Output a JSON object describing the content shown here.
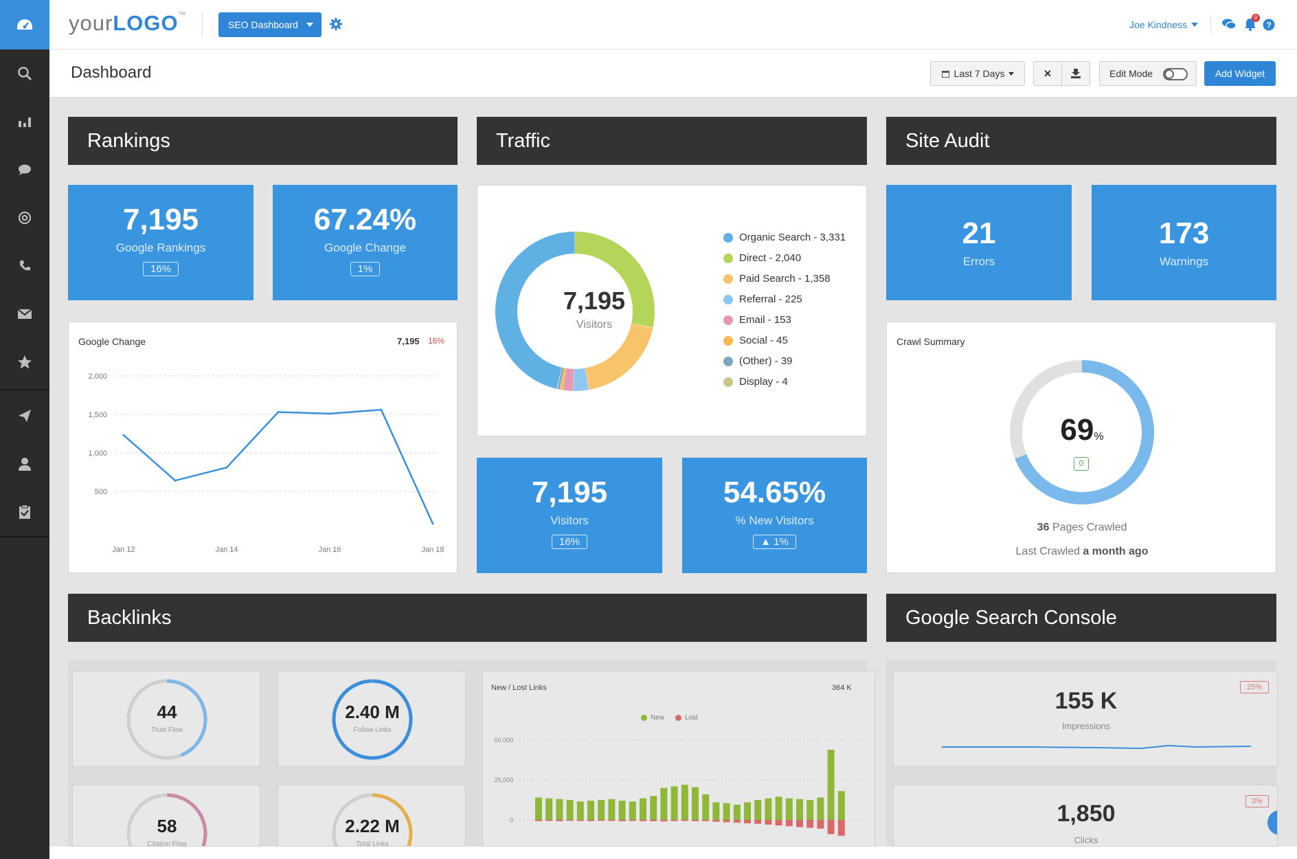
{
  "header": {
    "logo_prefix": "your",
    "logo_main": "LOGO",
    "logo_tm": "™",
    "dashboard_select": "SEO Dashboard",
    "user": "Joe Kindness",
    "notification_count": "9"
  },
  "subbar": {
    "title": "Dashboard",
    "date_range": "Last 7 Days",
    "close_label": "×",
    "edit_mode_label": "Edit Mode",
    "add_widget": "Add Widget"
  },
  "sections": {
    "rankings": "Rankings",
    "traffic": "Traffic",
    "site_audit": "Site Audit",
    "backlinks": "Backlinks",
    "gsc": "Google Search Console"
  },
  "rankings": {
    "kpi1": {
      "value": "7,195",
      "label": "Google Rankings",
      "pill": "16%"
    },
    "kpi2": {
      "value": "67.24%",
      "label": "Google Change",
      "pill": "1%"
    }
  },
  "google_change_chart": {
    "title": "Google Change",
    "summary_value": "7,195",
    "summary_pct": "16%",
    "accent": "#e24a4a"
  },
  "chart_data": [
    {
      "type": "line",
      "title": "Google Change",
      "x": [
        "Jan 12",
        "Jan 13",
        "Jan 14",
        "Jan 15",
        "Jan 16",
        "Jan 17",
        "Jan 18"
      ],
      "xticks": [
        "Jan 12",
        "Jan 14",
        "Jan 16",
        "Jan 18"
      ],
      "yticks": [
        "500",
        "1,000",
        "1,500",
        "2,000"
      ],
      "values": [
        1230,
        640,
        810,
        1530,
        1510,
        1560,
        80
      ],
      "ylim": [
        0,
        2000
      ],
      "grid": true,
      "color": "#3a8fdd"
    },
    {
      "type": "pie",
      "center_value": "7,195",
      "center_label": "Visitors",
      "slices": [
        {
          "label": "Organic Search - 3,331",
          "value": 3331,
          "color": "#5fb1e3"
        },
        {
          "label": "Direct - 2,040",
          "value": 2040,
          "color": "#b5d55a"
        },
        {
          "label": "Paid Search - 1,358",
          "value": 1358,
          "color": "#f7c46b"
        },
        {
          "label": "Referral - 225",
          "value": 225,
          "color": "#8ec8f0"
        },
        {
          "label": "Email - 153",
          "value": 153,
          "color": "#e49ab5"
        },
        {
          "label": "Social - 45",
          "value": 45,
          "color": "#f5b94e"
        },
        {
          "label": "(Other) - 39",
          "value": 39,
          "color": "#7fa6bf"
        },
        {
          "label": "Display - 4",
          "value": 4,
          "color": "#c9c489"
        }
      ]
    },
    {
      "type": "bar",
      "title": "New / Lost Links",
      "summary": "364 K",
      "legend": [
        "New",
        "Lost"
      ],
      "legend_colors": [
        "#8fb83a",
        "#d96a6a"
      ],
      "yticks": [
        "0",
        "25,000",
        "50,000"
      ],
      "ylim": [
        0,
        50000
      ],
      "new": [
        14000,
        13500,
        13000,
        12500,
        11500,
        12000,
        12500,
        13000,
        12000,
        11500,
        13500,
        15000,
        20000,
        21000,
        22000,
        20500,
        16000,
        11000,
        10500,
        9500,
        11000,
        12500,
        13500,
        14500,
        13500,
        13000,
        12500,
        14000,
        44000,
        18000
      ],
      "lost": [
        800,
        700,
        900,
        600,
        700,
        800,
        600,
        700,
        900,
        700,
        800,
        900,
        1000,
        800,
        700,
        900,
        800,
        1200,
        1500,
        1800,
        2200,
        2500,
        3000,
        3500,
        4000,
        4500,
        5000,
        5500,
        9000,
        10000
      ]
    }
  ],
  "traffic": {
    "kpi1": {
      "value": "7,195",
      "label": "Visitors",
      "pill": "16%"
    },
    "kpi2": {
      "value": "54.65%",
      "label": "% New Visitors",
      "pill": "▲ 1%"
    }
  },
  "site_audit": {
    "kpi1": {
      "value": "21",
      "label": "Errors"
    },
    "kpi2": {
      "value": "173",
      "label": "Warnings"
    },
    "crawl": {
      "title": "Crawl Summary",
      "percent": "69",
      "percent_unit": "%",
      "percent_value": 69,
      "badge": "0",
      "pages_prefix": "36",
      "pages_suffix": "Pages Crawled",
      "last_prefix": "Last Crawled",
      "last_suffix": "a month ago"
    }
  },
  "backlinks": {
    "trust_flow": {
      "value": "44",
      "label": "Trust Flow",
      "percent": 44,
      "color": "#7fb6e6"
    },
    "follow_links": {
      "value": "2.40 M",
      "label": "Follow Links",
      "percent": 100,
      "color": "#3a8fdd"
    },
    "citation_flow": {
      "value": "58",
      "label": "Citation Flow",
      "percent": 58,
      "color": "#c98aa6"
    },
    "total_links": {
      "value": "2.22 M",
      "label": "Total Links",
      "percent": 70,
      "color": "#e2b04a"
    }
  },
  "gsc": {
    "impressions": {
      "value": "155 K",
      "label": "Impressions",
      "badge": "25%"
    },
    "clicks": {
      "value": "1,850",
      "label": "Clicks",
      "badge": "3%"
    }
  }
}
